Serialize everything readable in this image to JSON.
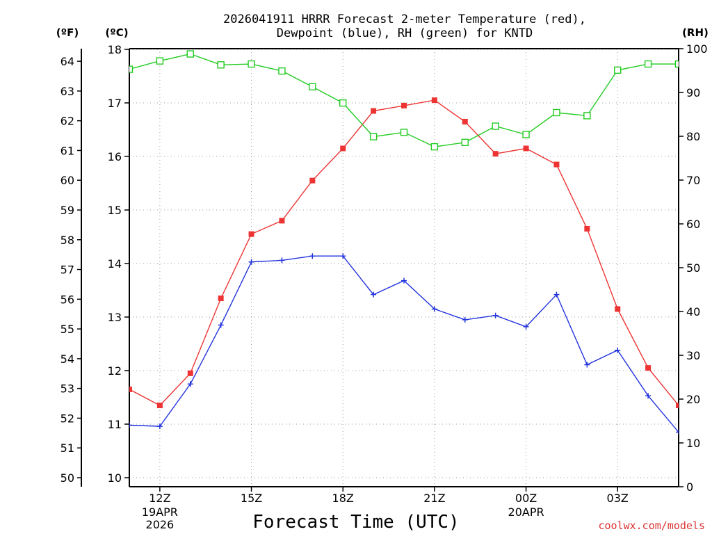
{
  "chart_data": {
    "type": "line",
    "title_line1": "2026041911 HRRR Forecast 2-meter Temperature (red),",
    "title_line2": "Dewpoint (blue), RH (green) for KNTD",
    "xlabel": "Forecast Time (UTC)",
    "credit": "coolwx.com/models",
    "unit_labels": {
      "fahrenheit": "(ºF)",
      "celsius": "(ºC)",
      "rh": "(RH)"
    },
    "hours": [
      11,
      12,
      13,
      14,
      15,
      16,
      17,
      18,
      19,
      20,
      21,
      22,
      23,
      24,
      25,
      26,
      27,
      28,
      29
    ],
    "xlim": [
      11,
      29
    ],
    "x_ticks": [
      {
        "hour": 12,
        "label": "12Z",
        "sub1": "19APR",
        "sub2": "2026"
      },
      {
        "hour": 15,
        "label": "15Z",
        "sub1": "",
        "sub2": ""
      },
      {
        "hour": 18,
        "label": "18Z",
        "sub1": "",
        "sub2": ""
      },
      {
        "hour": 21,
        "label": "21Z",
        "sub1": "",
        "sub2": ""
      },
      {
        "hour": 24,
        "label": "00Z",
        "sub1": "20APR",
        "sub2": ""
      },
      {
        "hour": 27,
        "label": "03Z",
        "sub1": "",
        "sub2": ""
      }
    ],
    "celsius_axis": {
      "min": 10,
      "max": 18,
      "ticks": [
        10,
        11,
        12,
        13,
        14,
        15,
        16,
        17,
        18
      ]
    },
    "fahrenheit_axis": {
      "ticks": [
        50,
        51,
        52,
        53,
        54,
        55,
        56,
        57,
        58,
        59,
        60,
        61,
        62,
        63,
        64
      ]
    },
    "rh_axis": {
      "min": 0,
      "max": 100,
      "ticks": [
        0,
        10,
        20,
        30,
        40,
        50,
        60,
        70,
        80,
        90,
        100
      ]
    },
    "series": [
      {
        "name": "Temperature",
        "unit": "C",
        "color": "#ee3333",
        "marker": "filled-square",
        "values": [
          11.65,
          11.35,
          11.95,
          13.35,
          14.55,
          14.8,
          15.55,
          16.15,
          16.85,
          16.95,
          17.05,
          16.65,
          16.05,
          16.15,
          15.85,
          14.65,
          13.15,
          12.05,
          11.35
        ]
      },
      {
        "name": "Dewpoint",
        "unit": "C",
        "color": "#2233dd",
        "marker": "plus",
        "values": [
          10.98,
          10.96,
          11.75,
          12.85,
          14.03,
          14.06,
          14.14,
          14.14,
          13.42,
          13.68,
          13.15,
          12.95,
          13.03,
          12.82,
          13.42,
          12.11,
          12.38,
          11.53,
          10.85
        ]
      },
      {
        "name": "RH",
        "unit": "%",
        "color": "#22cc22",
        "marker": "open-square",
        "values": [
          95.3,
          97.2,
          98.8,
          96.3,
          96.5,
          94.9,
          91.3,
          87.6,
          79.9,
          80.9,
          77.6,
          78.6,
          82.3,
          80.4,
          85.4,
          84.7,
          95.1,
          96.5,
          96.5
        ]
      }
    ]
  }
}
